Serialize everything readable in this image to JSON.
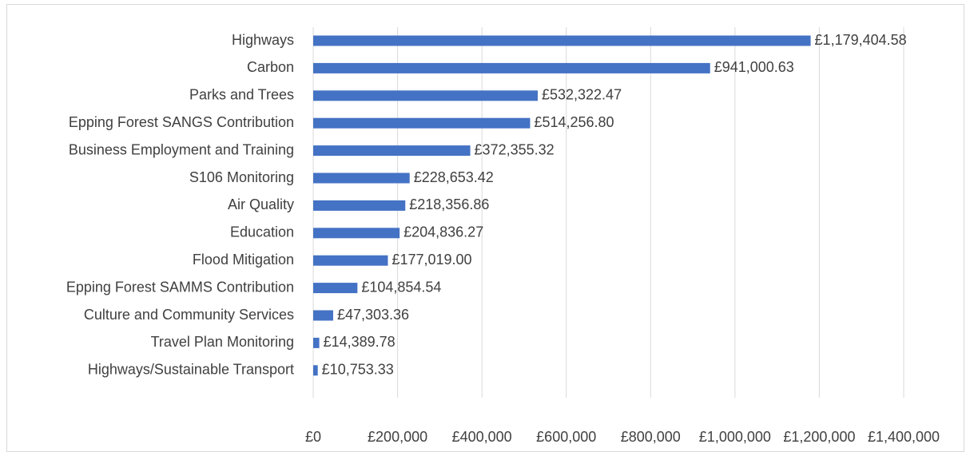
{
  "chart_data": {
    "type": "bar",
    "orientation": "horizontal",
    "categories": [
      "Highways",
      "Carbon",
      "Parks and Trees",
      "Epping Forest SANGS Contribution",
      "Business Employment and Training",
      "S106 Monitoring",
      "Air Quality",
      "Education",
      "Flood Mitigation",
      "Epping Forest SAMMS Contribution",
      "Culture and Community Services",
      "Travel Plan Monitoring",
      "Highways/Sustainable Transport"
    ],
    "values": [
      1179404.58,
      941000.63,
      532322.47,
      514256.8,
      372355.32,
      228653.42,
      218356.86,
      204836.27,
      177019.0,
      104854.54,
      47303.36,
      14389.78,
      10753.33
    ],
    "value_labels": [
      "£1,179,404.58",
      "£941,000.63",
      "£532,322.47",
      "£514,256.80",
      "£372,355.32",
      "£228,653.42",
      "£218,356.86",
      "£204,836.27",
      "£177,019.00",
      "£104,854.54",
      "£47,303.36",
      "£14,389.78",
      "£10,753.33"
    ],
    "color": "#4472c4",
    "xlim": [
      0,
      1400000
    ],
    "xticks": [
      {
        "value": 0,
        "label": "£0"
      },
      {
        "value": 200000,
        "label": "£200,000"
      },
      {
        "value": 400000,
        "label": "£400,000"
      },
      {
        "value": 600000,
        "label": "£600,000"
      },
      {
        "value": 800000,
        "label": "£800,000"
      },
      {
        "value": 1000000,
        "label": "£1,000,000"
      },
      {
        "value": 1200000,
        "label": "£1,200,000"
      },
      {
        "value": 1400000,
        "label": "£1,400,000"
      }
    ],
    "grid": true
  }
}
